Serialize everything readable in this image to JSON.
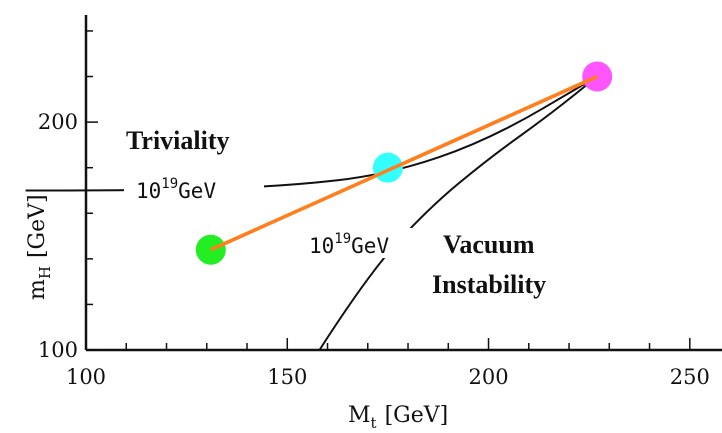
{
  "chart_data": {
    "type": "line",
    "xlabel": {
      "main": "M",
      "sub": "t",
      "unit": "[GeV]"
    },
    "ylabel": {
      "main": "m",
      "sub": "H",
      "unit": "[GeV]"
    },
    "xlim": [
      100,
      258
    ],
    "ylim": [
      100,
      247
    ],
    "xticks": [
      100,
      150,
      200,
      250
    ],
    "yticks": [
      100,
      200
    ],
    "grid": false,
    "series": [
      {
        "name": "",
        "color": "#ff7f1f",
        "x": [
          131,
          227
        ],
        "y": [
          144,
          220
        ]
      }
    ],
    "points": [
      {
        "x": 131,
        "y": 144,
        "color": "#22ee22"
      },
      {
        "x": 175,
        "y": 180,
        "color": "#33ffff"
      },
      {
        "x": 227,
        "y": 220,
        "color": "#ff55ff"
      }
    ],
    "curves": [
      {
        "label": "Triviality",
        "x": [
          85,
          120,
          150,
          175,
          200,
          227
        ],
        "y": [
          170,
          170,
          172,
          177,
          192,
          220
        ],
        "color": "#111111"
      },
      {
        "label": "Vacuum Instability",
        "x": [
          158,
          170,
          185,
          200,
          215,
          227
        ],
        "y": [
          100,
          133,
          162,
          184,
          203,
          220
        ],
        "color": "#111111"
      }
    ],
    "annotations": {
      "triviality": "Triviality",
      "vacuum_line1": "Vacuum",
      "vacuum_line2": "Instability",
      "cutoff_base": "10",
      "cutoff_exp": "19",
      "cutoff_unit": "GeV"
    }
  }
}
